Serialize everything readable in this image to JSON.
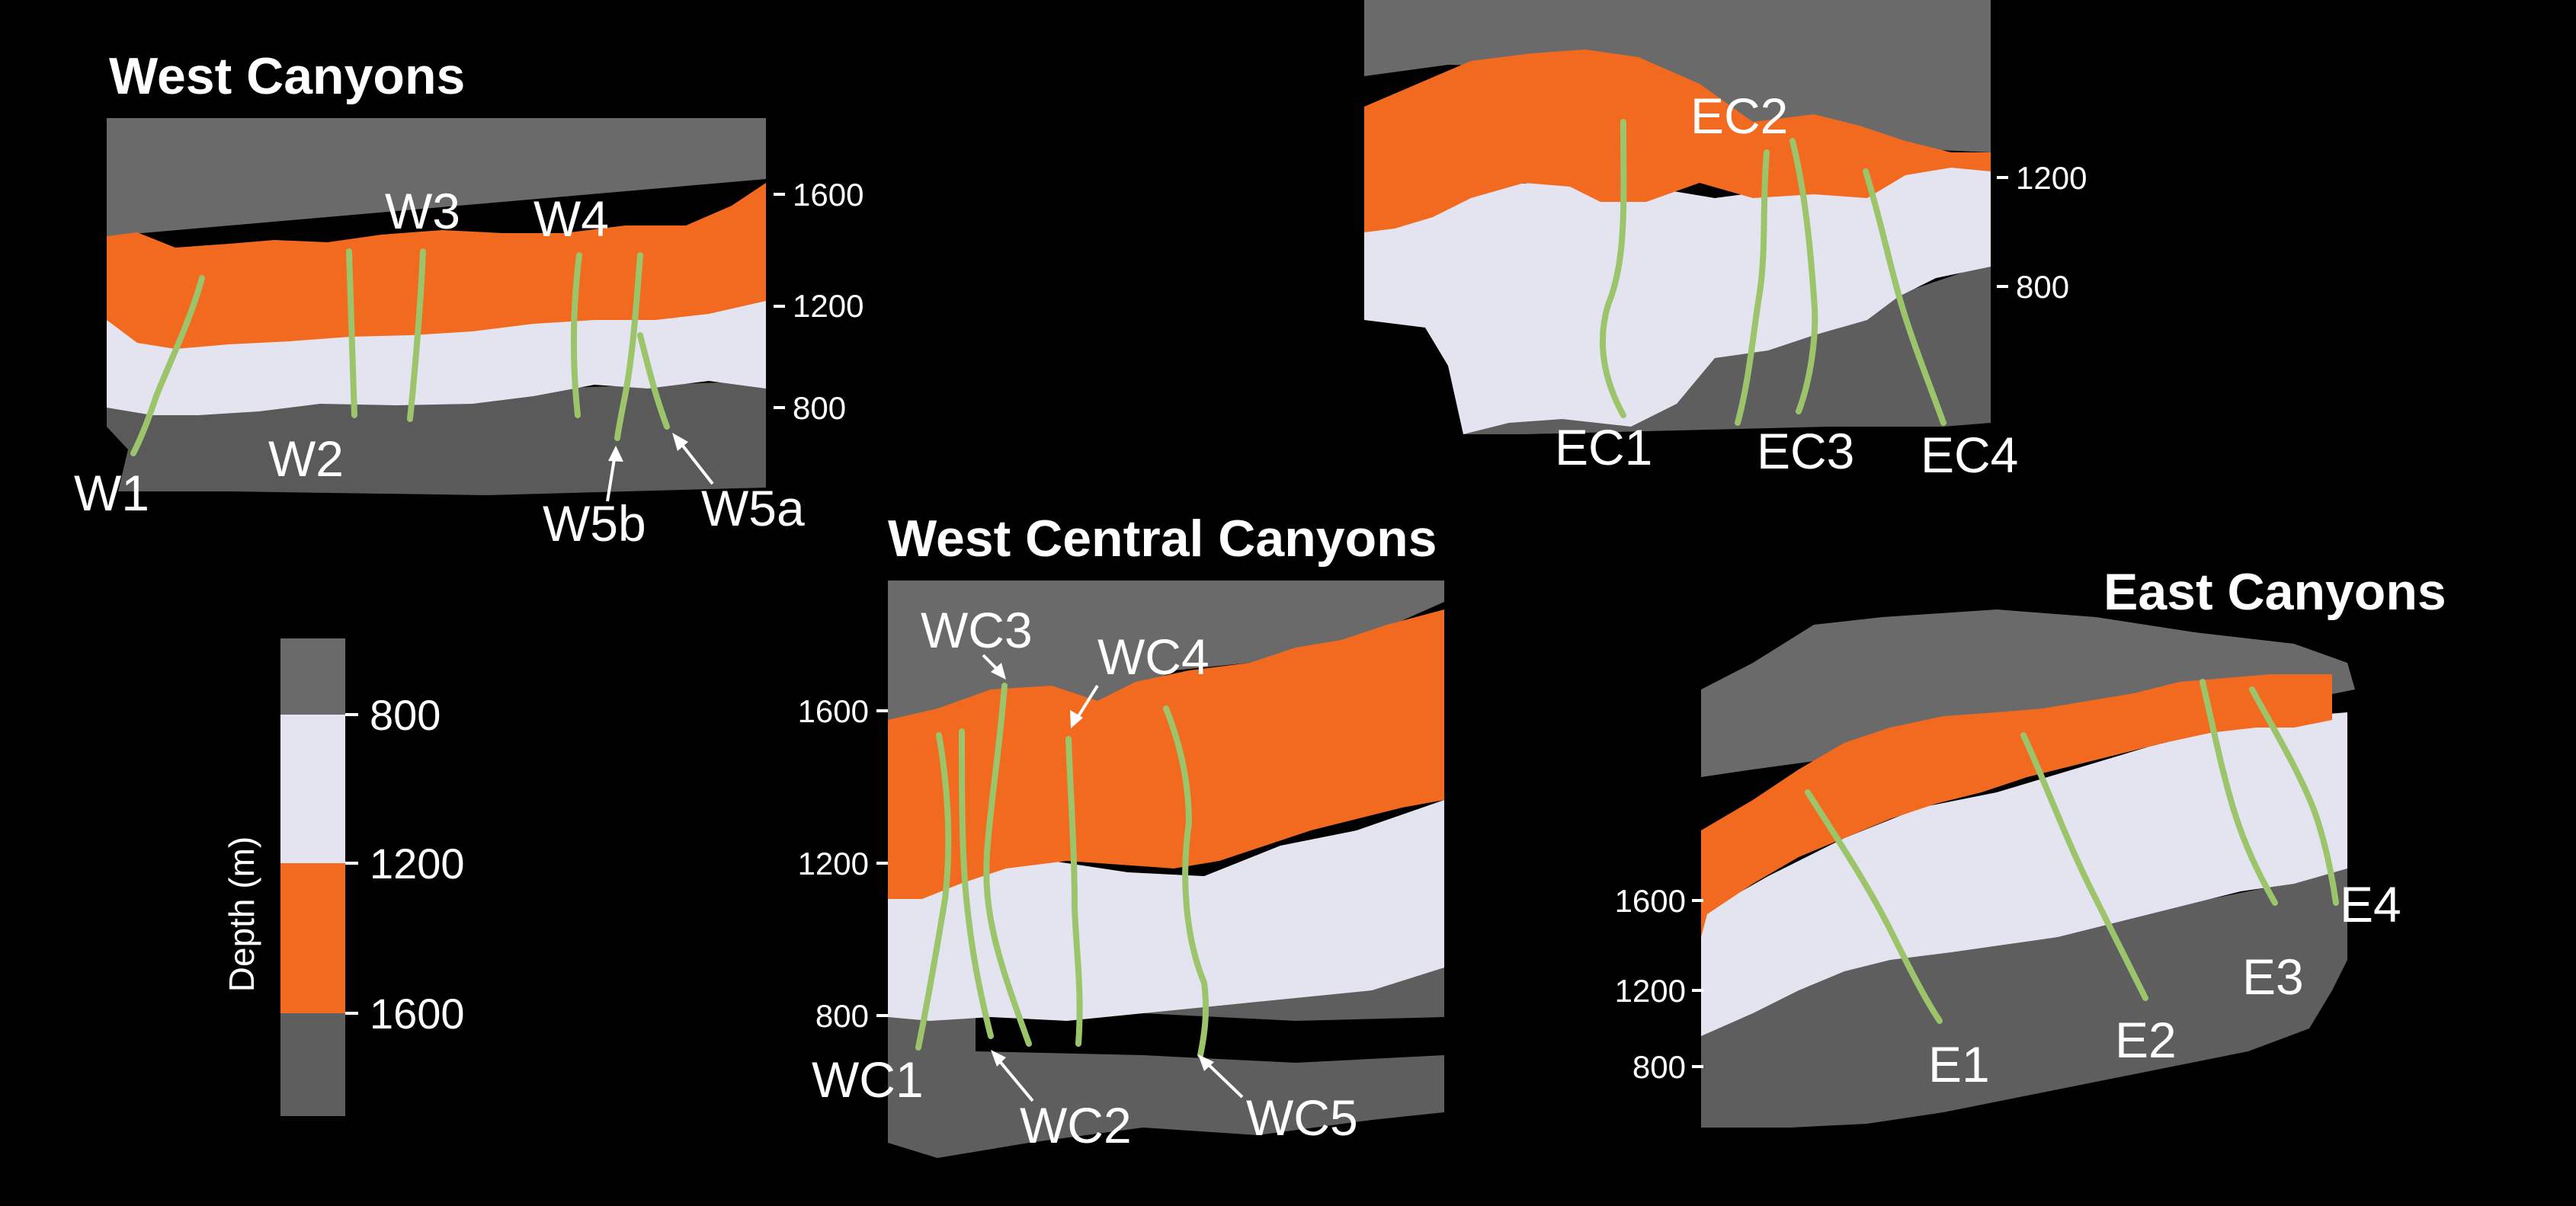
{
  "colors": {
    "background": "#000000",
    "shallow": "#6a6a6a",
    "mid": "#e4e4f0",
    "orange": "#f26a1f",
    "deep": "#5e5e5e",
    "canyon_line": "#9cc46a"
  },
  "panels": {
    "west": {
      "title": "West Canyons",
      "ticks": [
        "1600",
        "1200",
        "800"
      ],
      "labels": [
        "W1",
        "W2",
        "W3",
        "W4",
        "W5b",
        "W5a"
      ]
    },
    "east_central": {
      "ticks": [
        "1200",
        "800"
      ],
      "labels": [
        "EC2",
        "EC1",
        "EC3",
        "EC4"
      ]
    },
    "west_central": {
      "title": "West Central Canyons",
      "ticks": [
        "1600",
        "1200",
        "800"
      ],
      "labels": [
        "WC3",
        "WC4",
        "WC1",
        "WC2",
        "WC5"
      ]
    },
    "east": {
      "title": "East Canyons",
      "ticks": [
        "1600",
        "1200",
        "800"
      ],
      "labels": [
        "E1",
        "E2",
        "E3",
        "E4"
      ]
    }
  },
  "legend": {
    "axis_label": "Depth (m)",
    "ticks": [
      "800",
      "1200",
      "1600"
    ]
  }
}
